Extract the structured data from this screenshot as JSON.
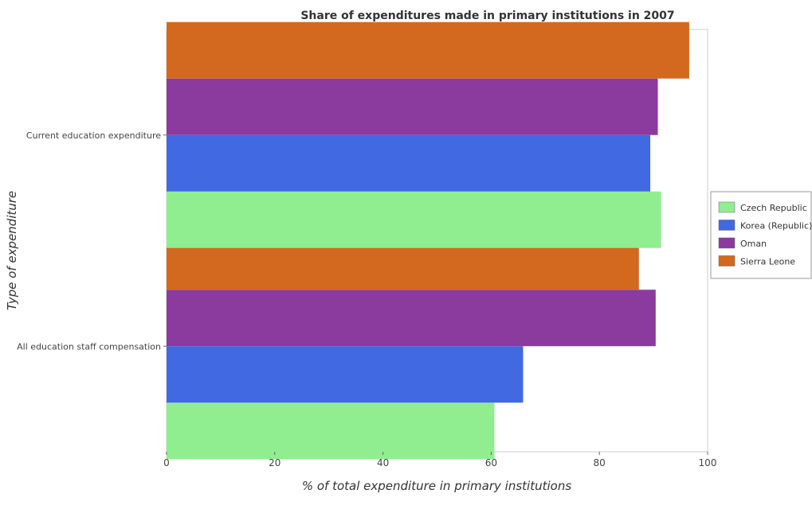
{
  "chart_data": {
    "type": "bar",
    "orientation": "horizontal",
    "title": "Share of expenditures made in primary institutions in 2007",
    "xlabel": "% of total expenditure in primary institutions",
    "ylabel": "Type of expenditure",
    "categories": [
      "All education staff compensation",
      "Current education expenditure"
    ],
    "series": [
      {
        "name": "Czech Republic",
        "color": "#90ee90",
        "values": [
          60.6,
          91.4
        ]
      },
      {
        "name": "Korea (Republic)",
        "color": "#4169e1",
        "values": [
          65.9,
          89.4
        ]
      },
      {
        "name": "Oman",
        "color": "#8b3a9e",
        "values": [
          90.4,
          90.8
        ]
      },
      {
        "name": "Sierra Leone",
        "color": "#d2691e",
        "values": [
          87.3,
          96.6
        ]
      }
    ],
    "xlim": [
      0,
      100
    ],
    "xticks": [
      0,
      20,
      40,
      60,
      80,
      100
    ],
    "legend_position": "right",
    "grid": false
  }
}
